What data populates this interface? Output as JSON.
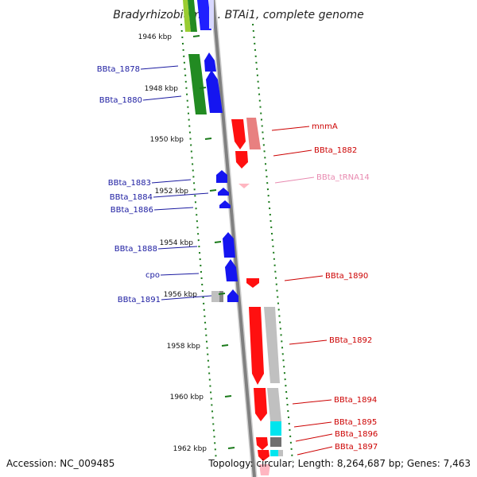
{
  "title": "Bradyrhizobium sp. BTAi1, complete genome",
  "footer": {
    "accession": "Accession: NC_009485",
    "topology": "Topology: circular; Length: 8,264,687 bp; Genes: 7,463"
  },
  "colors": {
    "backbone": "#808080",
    "tick": "#1a7a1a",
    "left_label": "#1a1aa0",
    "right_label": "#cc0000",
    "trna_label": "#e88ab0",
    "forward_cds": "#0000ff",
    "reverse_cds": "#ff0000",
    "green_cds": "#228b22",
    "light_green_cds": "#9acd32",
    "grey_cds": "#c0c0c0",
    "cyan_cds": "#00e5ee",
    "pink_trna": "#ffb6c1"
  },
  "scale_labels": [
    "1946 kbp",
    "1948 kbp",
    "1950 kbp",
    "1952 kbp",
    "1954 kbp",
    "1956 kbp",
    "1958 kbp",
    "1960 kbp",
    "1962 kbp"
  ],
  "left_genes": [
    "BBta_1878",
    "BBta_1880",
    "BBta_1883",
    "BBta_1884",
    "BBta_1886",
    "BBta_1888",
    "cpo",
    "BBta_1891"
  ],
  "right_genes": [
    "mnmA",
    "BBta_1882",
    "BBta_tRNA14",
    "BBta_1890",
    "BBta_1892",
    "BBta_1894",
    "BBta_1895",
    "BBta_1896",
    "BBta_1897"
  ]
}
